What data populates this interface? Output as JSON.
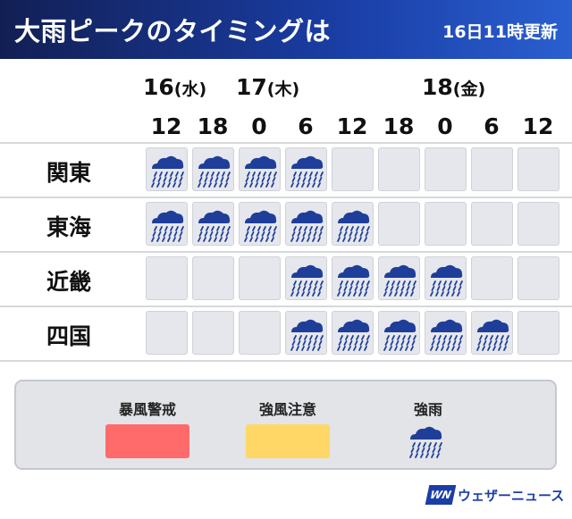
{
  "header": {
    "title": "大雨ピークのタイミングは",
    "updated": "16日11時更新",
    "bg_color": "#1a3ea6"
  },
  "timeline": {
    "days": [
      {
        "day": "16",
        "dow": "(水)"
      },
      {
        "day": "17",
        "dow": "(木)"
      },
      {
        "day": "18",
        "dow": "(金)"
      }
    ],
    "hours": [
      "12",
      "18",
      "0",
      "6",
      "12",
      "18",
      "0",
      "6",
      "12"
    ]
  },
  "regions": [
    {
      "name": "関東",
      "cells": [
        "heavy-rain",
        "heavy-rain",
        "heavy-rain",
        "heavy-rain",
        "none",
        "none",
        "none",
        "none",
        "none"
      ]
    },
    {
      "name": "東海",
      "cells": [
        "heavy-rain",
        "heavy-rain",
        "heavy-rain",
        "heavy-rain",
        "heavy-rain",
        "none",
        "none",
        "none",
        "none"
      ]
    },
    {
      "name": "近畿",
      "cells": [
        "none",
        "none",
        "none",
        "heavy-rain",
        "heavy-rain",
        "heavy-rain",
        "heavy-rain",
        "none",
        "none"
      ]
    },
    {
      "name": "四国",
      "cells": [
        "none",
        "none",
        "none",
        "heavy-rain",
        "heavy-rain",
        "heavy-rain",
        "heavy-rain",
        "heavy-rain",
        "none"
      ]
    }
  ],
  "legend": {
    "storm_warning": {
      "label": "暴風警戒",
      "color": "#ff6b6b"
    },
    "wind_advisory": {
      "label": "強風注意",
      "color": "#ffd766"
    },
    "heavy_rain": {
      "label": "強雨",
      "icon": "heavy-rain-icon"
    }
  },
  "brand": {
    "logo": "WN",
    "name": "ウェザーニュース"
  },
  "colors": {
    "cloud": "#1f3e9a",
    "rain": "#1f3e9a",
    "cell_bg": "#e5e7ec"
  }
}
